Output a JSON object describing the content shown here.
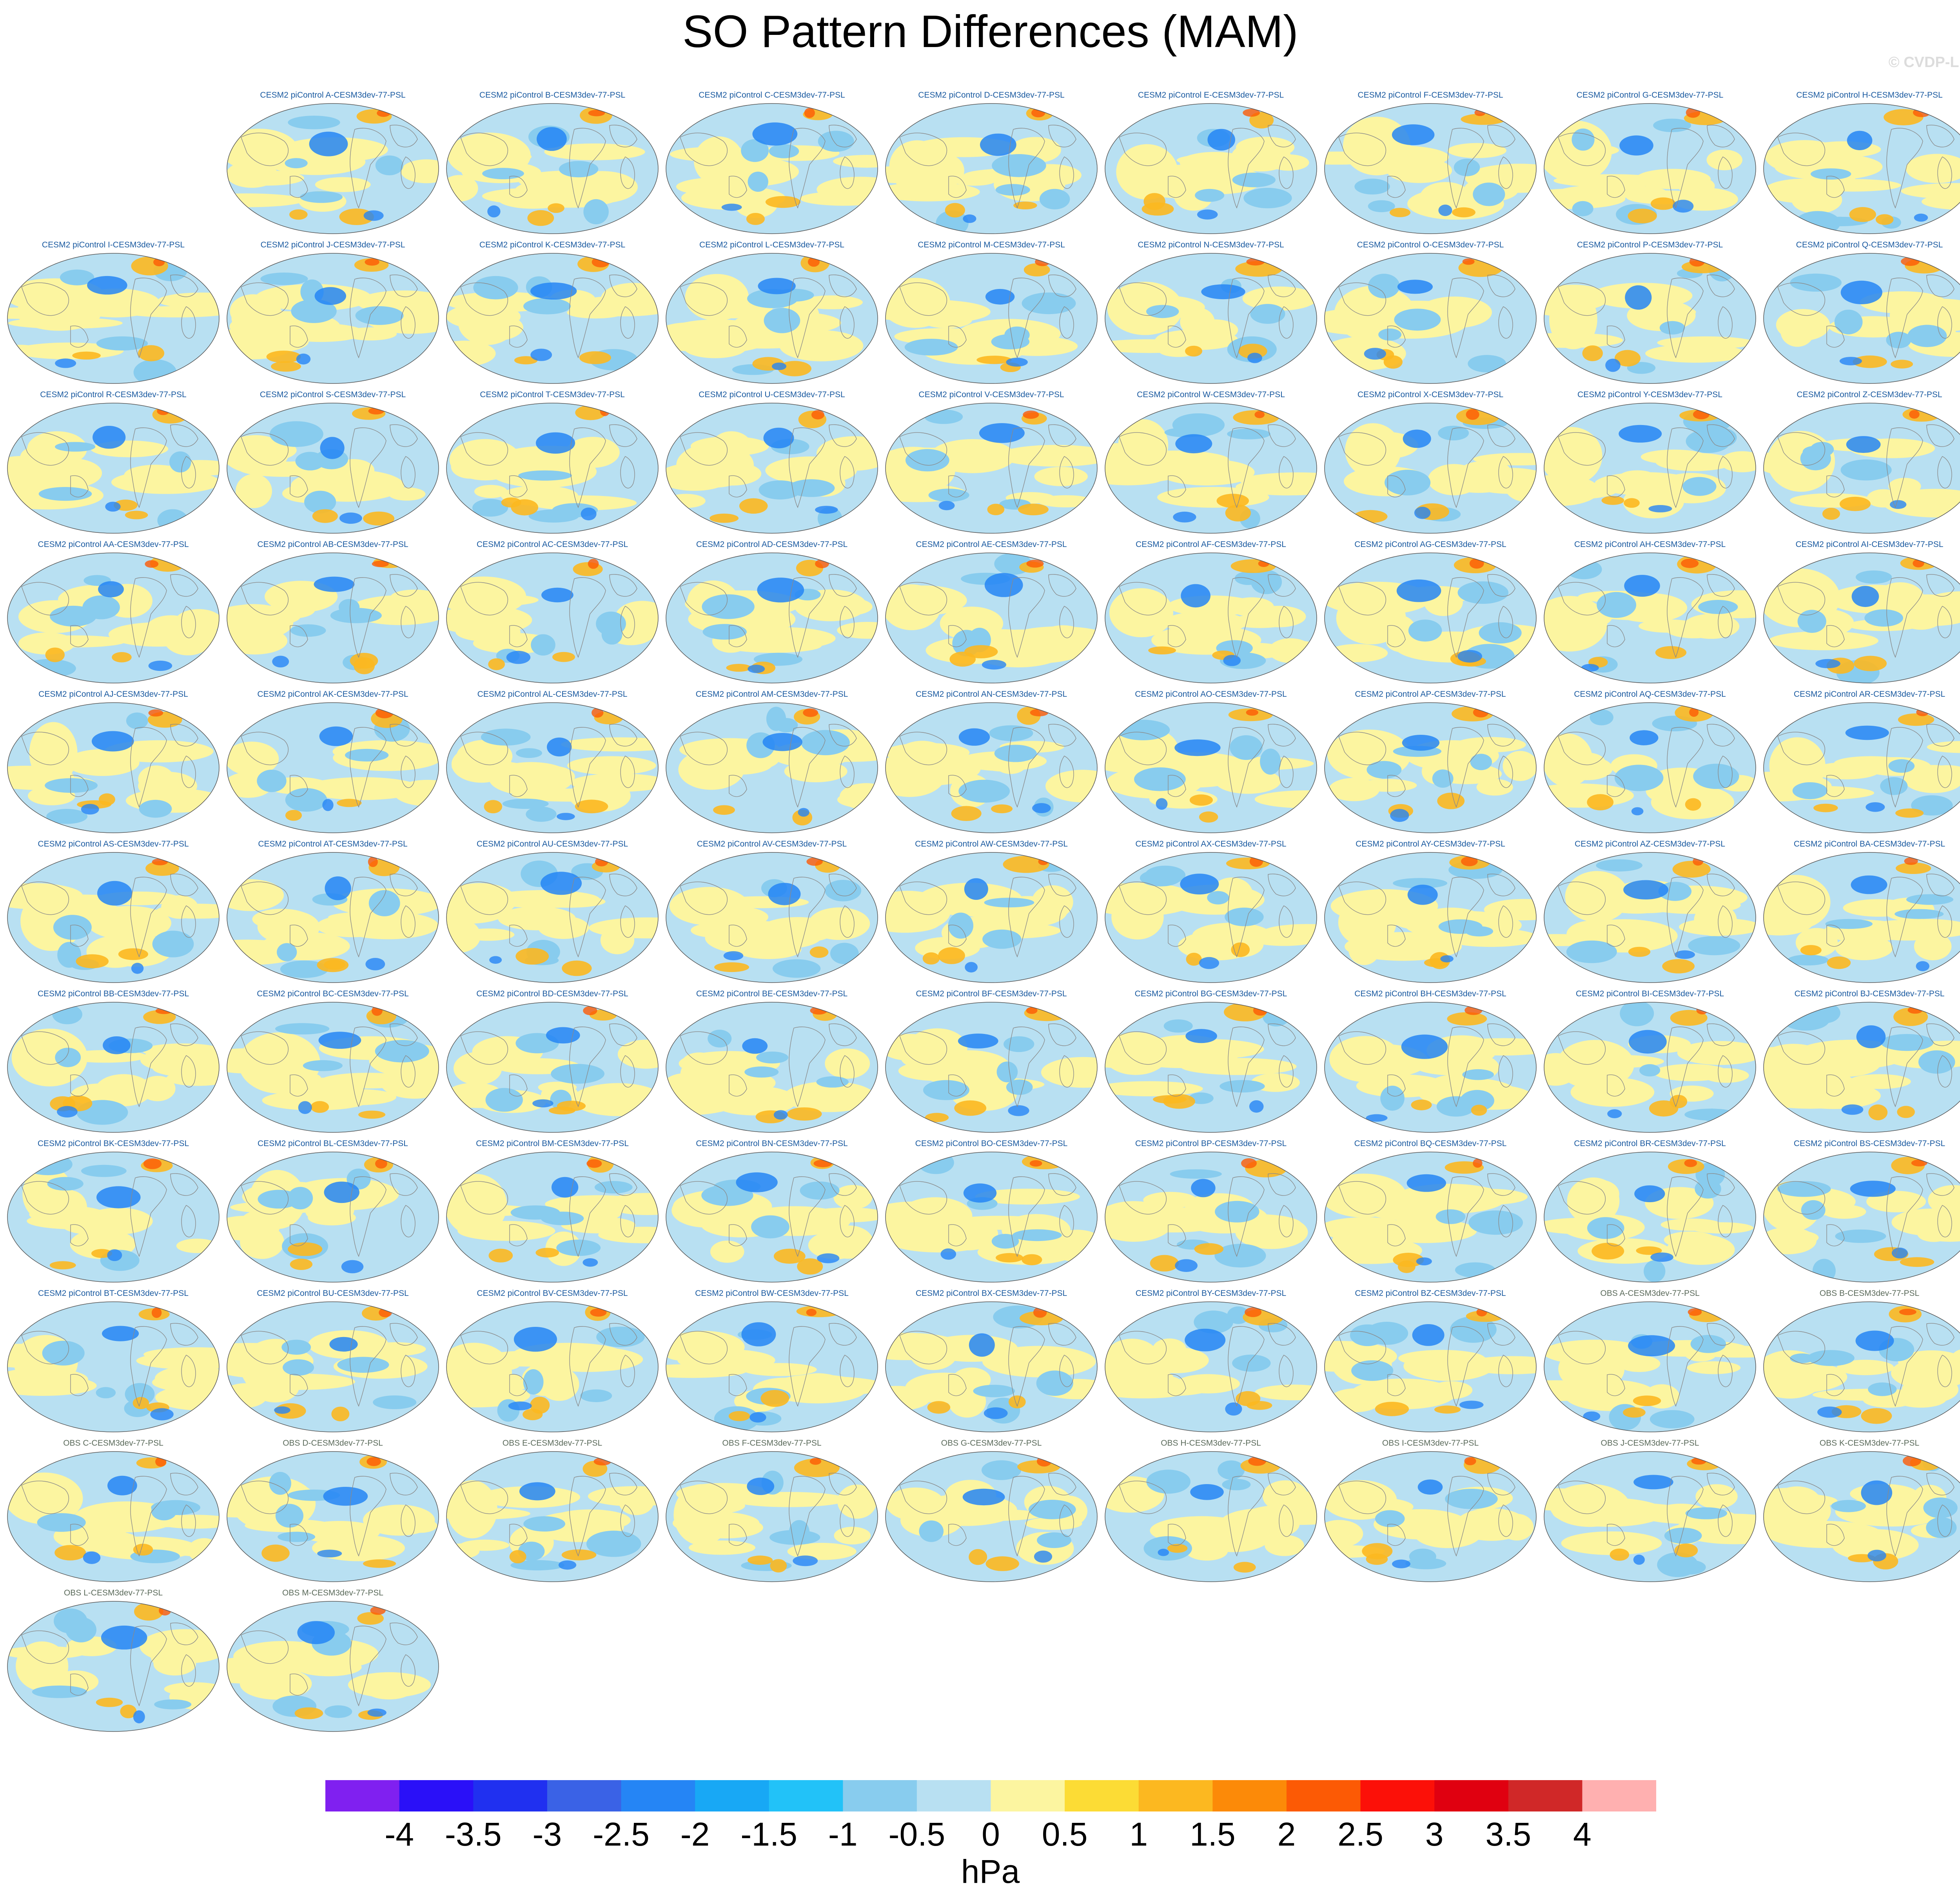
{
  "title": "SO Pattern Differences (MAM)",
  "watermark": "© CVDP-LE",
  "chart_data": {
    "type": "heatmap",
    "title": "SO Pattern Differences (MAM)",
    "variable": "PSL",
    "units": "hPa",
    "colorbar": {
      "levels": [
        -4,
        -3.5,
        -3,
        -2.5,
        -2,
        -1.5,
        -1,
        -0.5,
        0,
        0.5,
        1,
        1.5,
        2,
        2.5,
        3,
        3.5,
        4
      ],
      "tick_labels": [
        "-4",
        "-3.5",
        "-3",
        "-2.5",
        "-2",
        "-1.5",
        "-1",
        "-0.5",
        "0",
        "0.5",
        "1",
        "1.5",
        "2",
        "2.5",
        "3",
        "3.5",
        "4"
      ],
      "colors": [
        "#8020f0",
        "#2a10f8",
        "#2030f0",
        "#3a62e6",
        "#2585f5",
        "#18a8f5",
        "#22c2f8",
        "#88ccee",
        "#b8e0f2",
        "#fcf5a0",
        "#fcdc35",
        "#fcb820",
        "#fc8a08",
        "#fc5a05",
        "#fc1008",
        "#e00010",
        "#d02828",
        "#ffb0b0"
      ]
    },
    "panels": [
      "CESM2 piControl A-CESM3dev-77-PSL",
      "CESM2 piControl B-CESM3dev-77-PSL",
      "CESM2 piControl C-CESM3dev-77-PSL",
      "CESM2 piControl D-CESM3dev-77-PSL",
      "CESM2 piControl E-CESM3dev-77-PSL",
      "CESM2 piControl F-CESM3dev-77-PSL",
      "CESM2 piControl G-CESM3dev-77-PSL",
      "CESM2 piControl H-CESM3dev-77-PSL",
      "CESM2 piControl I-CESM3dev-77-PSL",
      "CESM2 piControl J-CESM3dev-77-PSL",
      "CESM2 piControl K-CESM3dev-77-PSL",
      "CESM2 piControl L-CESM3dev-77-PSL",
      "CESM2 piControl M-CESM3dev-77-PSL",
      "CESM2 piControl N-CESM3dev-77-PSL",
      "CESM2 piControl O-CESM3dev-77-PSL",
      "CESM2 piControl P-CESM3dev-77-PSL",
      "CESM2 piControl Q-CESM3dev-77-PSL",
      "CESM2 piControl R-CESM3dev-77-PSL",
      "CESM2 piControl S-CESM3dev-77-PSL",
      "CESM2 piControl T-CESM3dev-77-PSL",
      "CESM2 piControl U-CESM3dev-77-PSL",
      "CESM2 piControl V-CESM3dev-77-PSL",
      "CESM2 piControl W-CESM3dev-77-PSL",
      "CESM2 piControl X-CESM3dev-77-PSL",
      "CESM2 piControl Y-CESM3dev-77-PSL",
      "CESM2 piControl Z-CESM3dev-77-PSL",
      "CESM2 piControl AA-CESM3dev-77-PSL",
      "CESM2 piControl AB-CESM3dev-77-PSL",
      "CESM2 piControl AC-CESM3dev-77-PSL",
      "CESM2 piControl AD-CESM3dev-77-PSL",
      "CESM2 piControl AE-CESM3dev-77-PSL",
      "CESM2 piControl AF-CESM3dev-77-PSL",
      "CESM2 piControl AG-CESM3dev-77-PSL",
      "CESM2 piControl AH-CESM3dev-77-PSL",
      "CESM2 piControl AI-CESM3dev-77-PSL",
      "CESM2 piControl AJ-CESM3dev-77-PSL",
      "CESM2 piControl AK-CESM3dev-77-PSL",
      "CESM2 piControl AL-CESM3dev-77-PSL",
      "CESM2 piControl AM-CESM3dev-77-PSL",
      "CESM2 piControl AN-CESM3dev-77-PSL",
      "CESM2 piControl AO-CESM3dev-77-PSL",
      "CESM2 piControl AP-CESM3dev-77-PSL",
      "CESM2 piControl AQ-CESM3dev-77-PSL",
      "CESM2 piControl AR-CESM3dev-77-PSL",
      "CESM2 piControl AS-CESM3dev-77-PSL",
      "CESM2 piControl AT-CESM3dev-77-PSL",
      "CESM2 piControl AU-CESM3dev-77-PSL",
      "CESM2 piControl AV-CESM3dev-77-PSL",
      "CESM2 piControl AW-CESM3dev-77-PSL",
      "CESM2 piControl AX-CESM3dev-77-PSL",
      "CESM2 piControl AY-CESM3dev-77-PSL",
      "CESM2 piControl AZ-CESM3dev-77-PSL",
      "CESM2 piControl BA-CESM3dev-77-PSL",
      "CESM2 piControl BB-CESM3dev-77-PSL",
      "CESM2 piControl BC-CESM3dev-77-PSL",
      "CESM2 piControl BD-CESM3dev-77-PSL",
      "CESM2 piControl BE-CESM3dev-77-PSL",
      "CESM2 piControl BF-CESM3dev-77-PSL",
      "CESM2 piControl BG-CESM3dev-77-PSL",
      "CESM2 piControl BH-CESM3dev-77-PSL",
      "CESM2 piControl BI-CESM3dev-77-PSL",
      "CESM2 piControl BJ-CESM3dev-77-PSL",
      "CESM2 piControl BK-CESM3dev-77-PSL",
      "CESM2 piControl BL-CESM3dev-77-PSL",
      "CESM2 piControl BM-CESM3dev-77-PSL",
      "CESM2 piControl BN-CESM3dev-77-PSL",
      "CESM2 piControl BO-CESM3dev-77-PSL",
      "CESM2 piControl BP-CESM3dev-77-PSL",
      "CESM2 piControl BQ-CESM3dev-77-PSL",
      "CESM2 piControl BR-CESM3dev-77-PSL",
      "CESM2 piControl BS-CESM3dev-77-PSL",
      "CESM2 piControl BT-CESM3dev-77-PSL",
      "CESM2 piControl BU-CESM3dev-77-PSL",
      "CESM2 piControl BV-CESM3dev-77-PSL",
      "CESM2 piControl BW-CESM3dev-77-PSL",
      "CESM2 piControl BX-CESM3dev-77-PSL",
      "CESM2 piControl BY-CESM3dev-77-PSL",
      "CESM2 piControl BZ-CESM3dev-77-PSL",
      "OBS A-CESM3dev-77-PSL",
      "OBS B-CESM3dev-77-PSL",
      "OBS C-CESM3dev-77-PSL",
      "OBS D-CESM3dev-77-PSL",
      "OBS E-CESM3dev-77-PSL",
      "OBS F-CESM3dev-77-PSL",
      "OBS G-CESM3dev-77-PSL",
      "OBS H-CESM3dev-77-PSL",
      "OBS I-CESM3dev-77-PSL",
      "OBS J-CESM3dev-77-PSL",
      "OBS K-CESM3dev-77-PSL",
      "OBS L-CESM3dev-77-PSL",
      "OBS M-CESM3dev-77-PSL"
    ]
  }
}
